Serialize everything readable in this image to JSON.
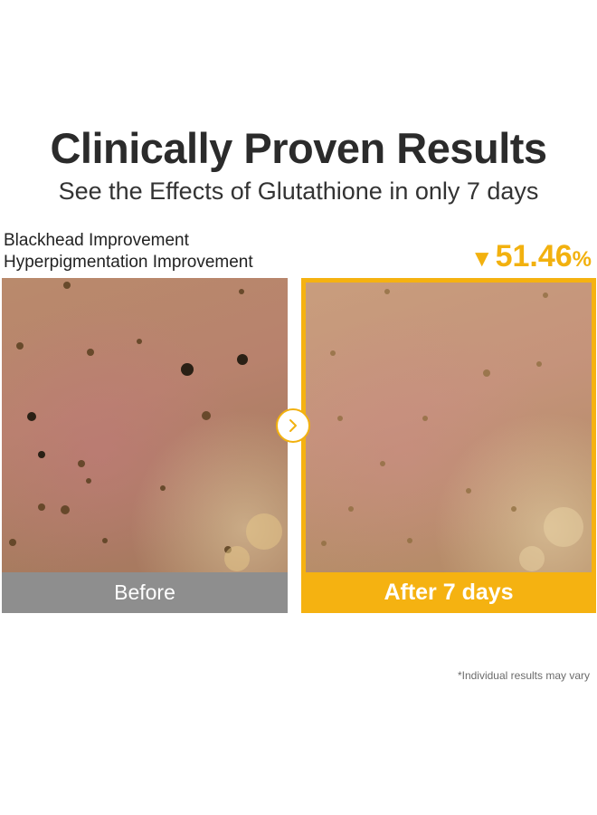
{
  "header": {
    "title": "Clinically Proven Results",
    "subtitle": "See the Effects of Glutathione in only 7 days"
  },
  "metrics": {
    "line1": "Blackhead Improvement",
    "line2": "Hyperpigmentation Improvement",
    "change_symbol": "▼",
    "value": "51.46",
    "unit": "%",
    "accent_color": "#f2b10f"
  },
  "comparison": {
    "before_label": "Before",
    "after_label": "After 7 days",
    "arrow_icon": "chevron-right-icon"
  },
  "footer": {
    "disclaimer": "*Individual results may vary"
  }
}
